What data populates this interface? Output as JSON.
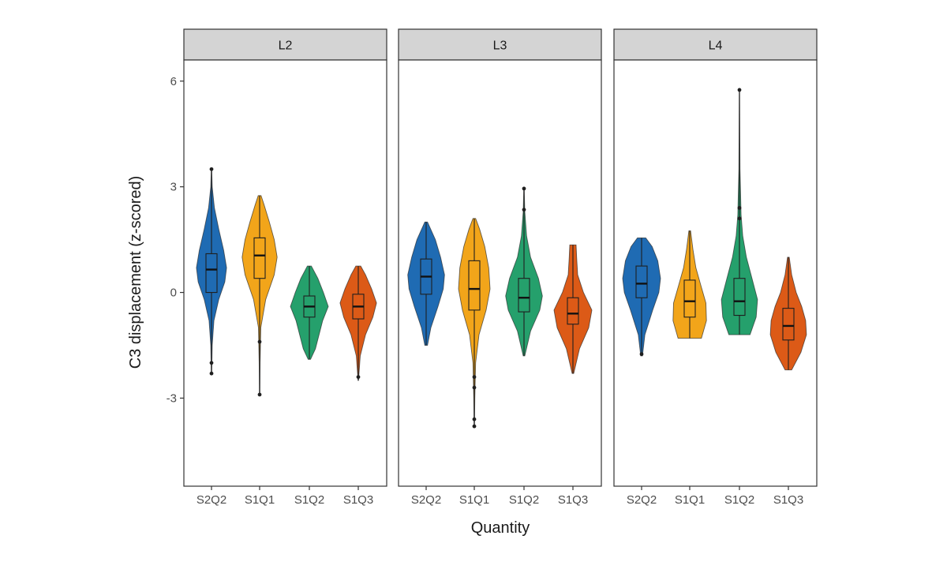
{
  "chart_data": {
    "type": "violin",
    "xlabel": "Quantity",
    "ylabel": "C3 displacement (z-scored)",
    "ylim": [
      -5.5,
      6.6
    ],
    "yticks": [
      -3,
      0,
      3,
      6
    ],
    "categories": [
      "S2Q2",
      "S1Q1",
      "S1Q2",
      "S1Q3"
    ],
    "colors": {
      "S2Q2": "#1f6bb3",
      "S1Q1": "#f2a51a",
      "S1Q2": "#25a06c",
      "S1Q3": "#dc5a17"
    },
    "panel_background": "#ffffff",
    "strip_background": "#d4d4d4",
    "grid": false,
    "legend": "none",
    "panels": [
      {
        "label": "L2",
        "groups": [
          {
            "category": "S2Q2",
            "min": -2.3,
            "q1": 0.0,
            "median": 0.65,
            "q3": 1.1,
            "max": 3.5,
            "outliers": [
              -2.3,
              -2.0,
              3.5
            ],
            "density": [
              [
                -2.3,
                0.01
              ],
              [
                -1.5,
                0.03
              ],
              [
                -0.8,
                0.1
              ],
              [
                -0.2,
                0.3
              ],
              [
                0.3,
                0.55
              ],
              [
                0.7,
                0.62
              ],
              [
                1.2,
                0.5
              ],
              [
                1.8,
                0.3
              ],
              [
                2.4,
                0.12
              ],
              [
                3.0,
                0.03
              ],
              [
                3.5,
                0.01
              ]
            ]
          },
          {
            "category": "S1Q1",
            "min": -2.9,
            "q1": 0.4,
            "median": 1.05,
            "q3": 1.55,
            "max": 2.75,
            "outliers": [
              -2.9,
              -1.4
            ],
            "density": [
              [
                -2.9,
                0.01
              ],
              [
                -2.0,
                0.02
              ],
              [
                -1.0,
                0.05
              ],
              [
                -0.2,
                0.25
              ],
              [
                0.5,
                0.6
              ],
              [
                1.0,
                0.72
              ],
              [
                1.5,
                0.6
              ],
              [
                2.0,
                0.4
              ],
              [
                2.5,
                0.18
              ],
              [
                2.75,
                0.06
              ]
            ]
          },
          {
            "category": "S1Q2",
            "min": -1.9,
            "q1": -0.7,
            "median": -0.4,
            "q3": -0.1,
            "max": 0.75,
            "outliers": [],
            "density": [
              [
                -1.9,
                0.05
              ],
              [
                -1.6,
                0.25
              ],
              [
                -1.2,
                0.4
              ],
              [
                -0.8,
                0.55
              ],
              [
                -0.4,
                0.78
              ],
              [
                0.0,
                0.58
              ],
              [
                0.4,
                0.35
              ],
              [
                0.75,
                0.08
              ]
            ]
          },
          {
            "category": "S1Q3",
            "min": -2.5,
            "q1": -0.75,
            "median": -0.4,
            "q3": -0.05,
            "max": 0.75,
            "outliers": [
              -2.4
            ],
            "density": [
              [
                -2.5,
                0.01
              ],
              [
                -1.8,
                0.08
              ],
              [
                -1.2,
                0.3
              ],
              [
                -0.7,
                0.6
              ],
              [
                -0.3,
                0.75
              ],
              [
                0.1,
                0.55
              ],
              [
                0.5,
                0.3
              ],
              [
                0.75,
                0.1
              ]
            ]
          }
        ]
      },
      {
        "label": "L3",
        "groups": [
          {
            "category": "S2Q2",
            "min": -1.5,
            "q1": -0.05,
            "median": 0.45,
            "q3": 0.95,
            "max": 2.0,
            "outliers": [],
            "density": [
              [
                -1.5,
                0.05
              ],
              [
                -1.0,
                0.18
              ],
              [
                -0.4,
                0.45
              ],
              [
                0.1,
                0.65
              ],
              [
                0.5,
                0.7
              ],
              [
                1.0,
                0.55
              ],
              [
                1.5,
                0.35
              ],
              [
                2.0,
                0.05
              ]
            ]
          },
          {
            "category": "S1Q1",
            "min": -3.8,
            "q1": -0.5,
            "median": 0.1,
            "q3": 0.9,
            "max": 2.1,
            "outliers": [
              -3.8,
              -3.6,
              -2.7,
              -2.4
            ],
            "density": [
              [
                -3.8,
                0.01
              ],
              [
                -3.0,
                0.02
              ],
              [
                -2.0,
                0.05
              ],
              [
                -1.2,
                0.18
              ],
              [
                -0.5,
                0.45
              ],
              [
                0.1,
                0.6
              ],
              [
                0.7,
                0.55
              ],
              [
                1.3,
                0.4
              ],
              [
                1.8,
                0.2
              ],
              [
                2.1,
                0.05
              ]
            ]
          },
          {
            "category": "S1Q2",
            "min": -1.8,
            "q1": -0.55,
            "median": -0.15,
            "q3": 0.4,
            "max": 2.95,
            "outliers": [
              2.95,
              2.35
            ],
            "density": [
              [
                -1.8,
                0.03
              ],
              [
                -1.1,
                0.25
              ],
              [
                -0.5,
                0.6
              ],
              [
                -0.1,
                0.7
              ],
              [
                0.4,
                0.55
              ],
              [
                1.0,
                0.25
              ],
              [
                1.6,
                0.1
              ],
              [
                2.3,
                0.03
              ],
              [
                2.95,
                0.01
              ]
            ]
          },
          {
            "category": "S1Q3",
            "min": -2.3,
            "q1": -0.9,
            "median": -0.6,
            "q3": -0.15,
            "max": 1.35,
            "outliers": [],
            "density": [
              [
                -2.3,
                0.03
              ],
              [
                -1.6,
                0.25
              ],
              [
                -1.0,
                0.6
              ],
              [
                -0.5,
                0.72
              ],
              [
                0.0,
                0.4
              ],
              [
                0.5,
                0.18
              ],
              [
                1.0,
                0.14
              ],
              [
                1.35,
                0.12
              ]
            ]
          }
        ]
      },
      {
        "label": "L4",
        "groups": [
          {
            "category": "S2Q2",
            "min": -1.8,
            "q1": -0.15,
            "median": 0.25,
            "q3": 0.75,
            "max": 1.55,
            "outliers": [
              -1.75
            ],
            "density": [
              [
                -1.8,
                0.03
              ],
              [
                -1.2,
                0.12
              ],
              [
                -0.5,
                0.4
              ],
              [
                0.0,
                0.62
              ],
              [
                0.4,
                0.68
              ],
              [
                0.9,
                0.58
              ],
              [
                1.3,
                0.38
              ],
              [
                1.55,
                0.15
              ]
            ]
          },
          {
            "category": "S1Q1",
            "min": -1.3,
            "q1": -0.7,
            "median": -0.25,
            "q3": 0.35,
            "max": 1.75,
            "outliers": [],
            "density": [
              [
                -1.3,
                0.42
              ],
              [
                -0.8,
                0.6
              ],
              [
                -0.3,
                0.58
              ],
              [
                0.2,
                0.4
              ],
              [
                0.7,
                0.22
              ],
              [
                1.2,
                0.12
              ],
              [
                1.75,
                0.03
              ]
            ]
          },
          {
            "category": "S1Q2",
            "min": -1.2,
            "q1": -0.65,
            "median": -0.25,
            "q3": 0.4,
            "max": 5.75,
            "outliers": [
              5.75,
              2.4,
              2.1
            ],
            "density": [
              [
                -1.2,
                0.38
              ],
              [
                -0.7,
                0.6
              ],
              [
                -0.2,
                0.65
              ],
              [
                0.4,
                0.45
              ],
              [
                1.0,
                0.25
              ],
              [
                1.6,
                0.12
              ],
              [
                2.2,
                0.06
              ],
              [
                3.5,
                0.02
              ],
              [
                5.75,
                0.005
              ]
            ]
          },
          {
            "category": "S1Q3",
            "min": -2.2,
            "q1": -1.35,
            "median": -0.95,
            "q3": -0.45,
            "max": 1.0,
            "outliers": [],
            "density": [
              [
                -2.2,
                0.12
              ],
              [
                -1.7,
                0.45
              ],
              [
                -1.2,
                0.65
              ],
              [
                -0.8,
                0.62
              ],
              [
                -0.4,
                0.48
              ],
              [
                0.0,
                0.28
              ],
              [
                0.5,
                0.12
              ],
              [
                1.0,
                0.03
              ]
            ]
          }
        ]
      }
    ]
  }
}
